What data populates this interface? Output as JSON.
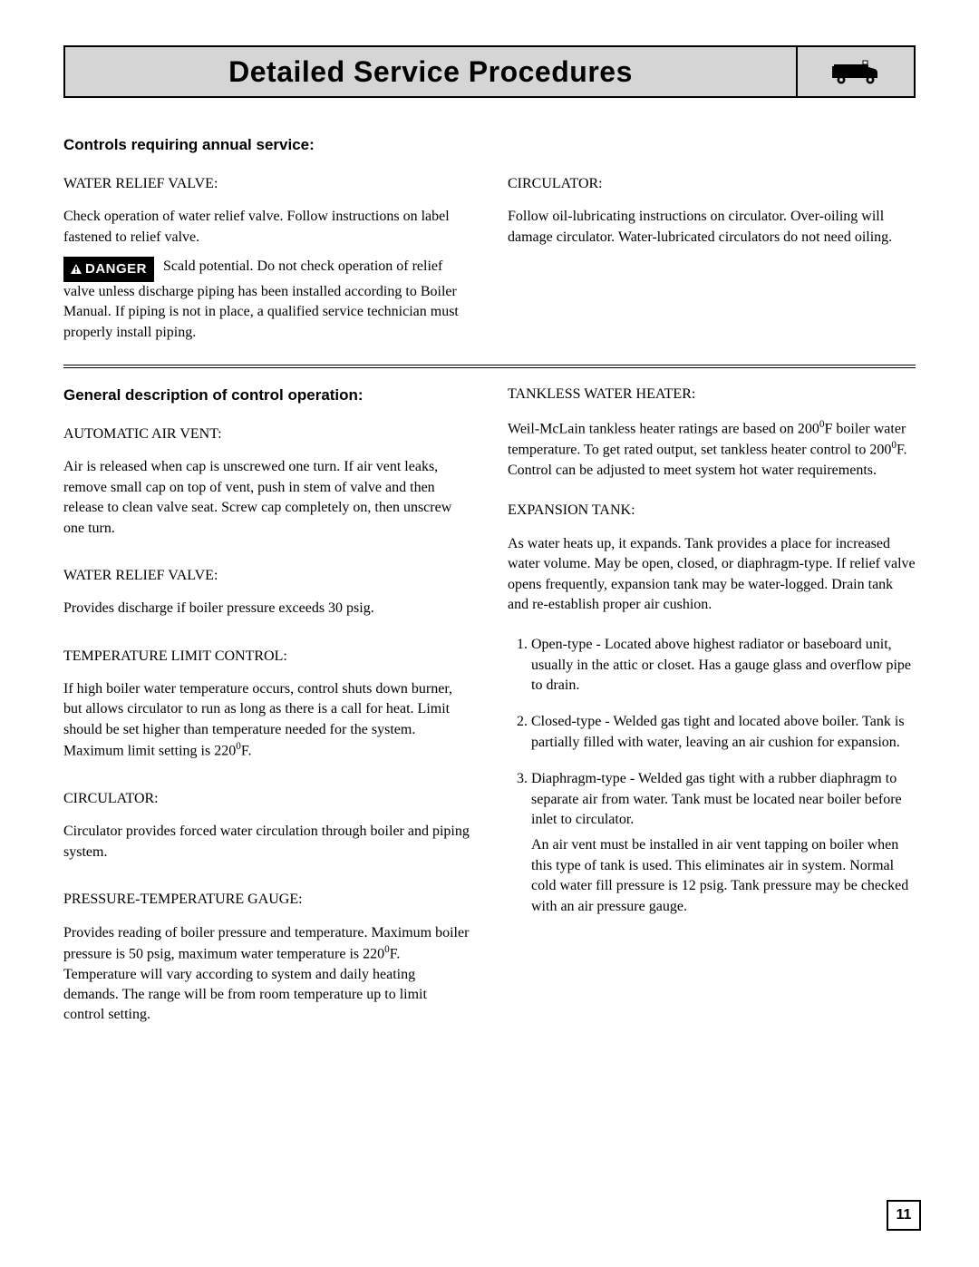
{
  "header": {
    "title": "Detailed Service Procedures"
  },
  "section1": {
    "heading": "Controls requiring annual service:",
    "left": {
      "subhead": "WATER RELIEF VALVE:",
      "para": "Check operation of water relief valve. Follow instructions on label fastened to relief valve.",
      "danger_label": "DANGER",
      "danger_text": "Scald potential. Do not check operation of relief valve unless discharge piping has been installed according to Boiler Manual. If piping is not in place, a qualified service technician must properly install piping."
    },
    "right": {
      "subhead": "CIRCULATOR:",
      "para": "Follow oil-lubricating instructions on circulator. Over-oiling will damage circulator. Water-lubricated circulators do not need oiling."
    }
  },
  "section2": {
    "heading": "General description of control operation:",
    "left": {
      "subhead1": "AUTOMATIC AIR VENT:",
      "para1": "Air is released when cap is unscrewed one turn. If air vent leaks, remove small cap on top of vent, push in stem of valve and then release to clean valve seat. Screw cap completely on, then unscrew one turn.",
      "subhead2": "WATER RELIEF VALVE:",
      "para2": "Provides discharge if boiler pressure exceeds  30 psig.",
      "subhead3": "TEMPERATURE  LIMIT CONTROL:",
      "para3_html": "If high boiler water temperature occurs, control shuts down burner, but allows circulator to run as long as there is a call for heat. Limit should be set higher than temperature needed for the system. Maximum limit setting is 220<sup>0</sup>F.",
      "subhead4": "CIRCULATOR:",
      "para4": "Circulator provides forced water circulation through boiler and piping system.",
      "subhead5": "PRESSURE-TEMPERATURE GAUGE:",
      "para5_html": "Provides reading of boiler pressure and temperature.  Maximum boiler pressure is 50 psig, maximum water temperature is 220<sup>0</sup>F. Temperature will vary according to system and daily heating demands. The range will be from room temperature up to limit control setting."
    },
    "right": {
      "subhead1": "TANKLESS WATER HEATER:",
      "para1_html": "Weil-McLain tankless heater ratings are based on 200<sup>0</sup>F boiler water temperature. To get rated output, set tankless heater control to 200<sup>0</sup>F. Control can be adjusted to meet system hot water requirements.",
      "subhead2": "EXPANSION TANK:",
      "para2": "As water heats up, it expands. Tank provides a place for increased water volume. May be open, closed, or diaphragm-type. If relief valve opens frequently, expansion tank may be water-logged. Drain tank and re-establish proper air cushion.",
      "list": [
        "Open-type - Located above highest radiator or baseboard unit, usually in the attic or closet. Has a gauge glass and overflow pipe to drain.",
        "Closed-type - Welded gas tight and located above boiler. Tank is partially filled with water, leaving an air cushion for expansion.",
        "Diaphragm-type - Welded gas tight with a rubber diaphragm to separate air from water. Tank must be located near boiler before inlet to circulator."
      ],
      "item3_sub": "An air vent must be installed in air vent tapping on boiler when this type of tank is used. This eliminates air in system. Normal cold water fill pressure is 12 psig. Tank pressure may be checked with an air pressure gauge."
    }
  },
  "page_number": "11"
}
